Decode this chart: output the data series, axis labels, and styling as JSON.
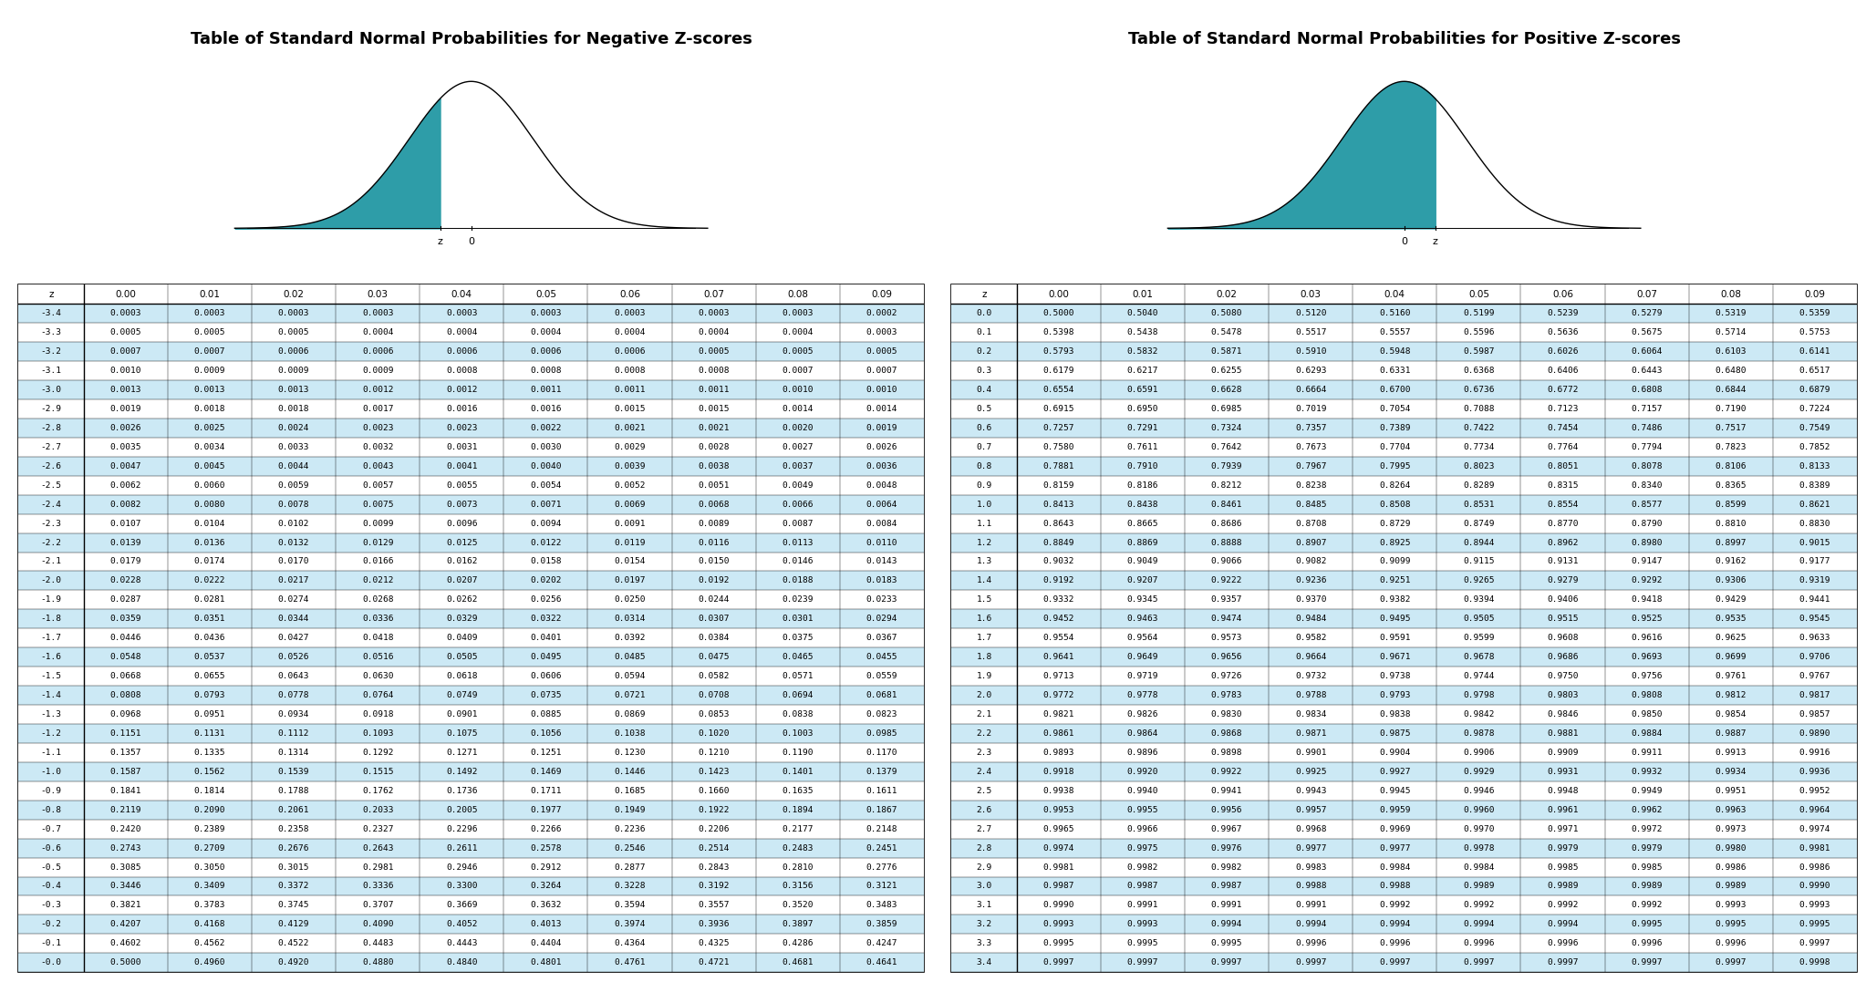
{
  "title_neg": "Table of Standard Normal Probabilities for Negative Z-scores",
  "title_pos": "Table of Standard Normal Probabilities for Positive Z-scores",
  "bg_color": "#ffffff",
  "row_alt_color": "#cce9f5",
  "row_normal_color": "#ffffff",
  "teal_fill": "#2e9da8",
  "col_headers": [
    "z",
    "0.00",
    "0.01",
    "0.02",
    "0.03",
    "0.04",
    "0.05",
    "0.06",
    "0.07",
    "0.08",
    "0.09"
  ],
  "neg_z_rows": [
    [
      -3.4,
      0.0003,
      0.0003,
      0.0003,
      0.0003,
      0.0003,
      0.0003,
      0.0003,
      0.0003,
      0.0003,
      0.0002
    ],
    [
      -3.3,
      0.0005,
      0.0005,
      0.0005,
      0.0004,
      0.0004,
      0.0004,
      0.0004,
      0.0004,
      0.0004,
      0.0003
    ],
    [
      -3.2,
      0.0007,
      0.0007,
      0.0006,
      0.0006,
      0.0006,
      0.0006,
      0.0006,
      0.0005,
      0.0005,
      0.0005
    ],
    [
      -3.1,
      0.001,
      0.0009,
      0.0009,
      0.0009,
      0.0008,
      0.0008,
      0.0008,
      0.0008,
      0.0007,
      0.0007
    ],
    [
      -3.0,
      0.0013,
      0.0013,
      0.0013,
      0.0012,
      0.0012,
      0.0011,
      0.0011,
      0.0011,
      0.001,
      0.001
    ],
    [
      -2.9,
      0.0019,
      0.0018,
      0.0018,
      0.0017,
      0.0016,
      0.0016,
      0.0015,
      0.0015,
      0.0014,
      0.0014
    ],
    [
      -2.8,
      0.0026,
      0.0025,
      0.0024,
      0.0023,
      0.0023,
      0.0022,
      0.0021,
      0.0021,
      0.002,
      0.0019
    ],
    [
      -2.7,
      0.0035,
      0.0034,
      0.0033,
      0.0032,
      0.0031,
      0.003,
      0.0029,
      0.0028,
      0.0027,
      0.0026
    ],
    [
      -2.6,
      0.0047,
      0.0045,
      0.0044,
      0.0043,
      0.0041,
      0.004,
      0.0039,
      0.0038,
      0.0037,
      0.0036
    ],
    [
      -2.5,
      0.0062,
      0.006,
      0.0059,
      0.0057,
      0.0055,
      0.0054,
      0.0052,
      0.0051,
      0.0049,
      0.0048
    ],
    [
      -2.4,
      0.0082,
      0.008,
      0.0078,
      0.0075,
      0.0073,
      0.0071,
      0.0069,
      0.0068,
      0.0066,
      0.0064
    ],
    [
      -2.3,
      0.0107,
      0.0104,
      0.0102,
      0.0099,
      0.0096,
      0.0094,
      0.0091,
      0.0089,
      0.0087,
      0.0084
    ],
    [
      -2.2,
      0.0139,
      0.0136,
      0.0132,
      0.0129,
      0.0125,
      0.0122,
      0.0119,
      0.0116,
      0.0113,
      0.011
    ],
    [
      -2.1,
      0.0179,
      0.0174,
      0.017,
      0.0166,
      0.0162,
      0.0158,
      0.0154,
      0.015,
      0.0146,
      0.0143
    ],
    [
      -2.0,
      0.0228,
      0.0222,
      0.0217,
      0.0212,
      0.0207,
      0.0202,
      0.0197,
      0.0192,
      0.0188,
      0.0183
    ],
    [
      -1.9,
      0.0287,
      0.0281,
      0.0274,
      0.0268,
      0.0262,
      0.0256,
      0.025,
      0.0244,
      0.0239,
      0.0233
    ],
    [
      -1.8,
      0.0359,
      0.0351,
      0.0344,
      0.0336,
      0.0329,
      0.0322,
      0.0314,
      0.0307,
      0.0301,
      0.0294
    ],
    [
      -1.7,
      0.0446,
      0.0436,
      0.0427,
      0.0418,
      0.0409,
      0.0401,
      0.0392,
      0.0384,
      0.0375,
      0.0367
    ],
    [
      -1.6,
      0.0548,
      0.0537,
      0.0526,
      0.0516,
      0.0505,
      0.0495,
      0.0485,
      0.0475,
      0.0465,
      0.0455
    ],
    [
      -1.5,
      0.0668,
      0.0655,
      0.0643,
      0.063,
      0.0618,
      0.0606,
      0.0594,
      0.0582,
      0.0571,
      0.0559
    ],
    [
      -1.4,
      0.0808,
      0.0793,
      0.0778,
      0.0764,
      0.0749,
      0.0735,
      0.0721,
      0.0708,
      0.0694,
      0.0681
    ],
    [
      -1.3,
      0.0968,
      0.0951,
      0.0934,
      0.0918,
      0.0901,
      0.0885,
      0.0869,
      0.0853,
      0.0838,
      0.0823
    ],
    [
      -1.2,
      0.1151,
      0.1131,
      0.1112,
      0.1093,
      0.1075,
      0.1056,
      0.1038,
      0.102,
      0.1003,
      0.0985
    ],
    [
      -1.1,
      0.1357,
      0.1335,
      0.1314,
      0.1292,
      0.1271,
      0.1251,
      0.123,
      0.121,
      0.119,
      0.117
    ],
    [
      -1.0,
      0.1587,
      0.1562,
      0.1539,
      0.1515,
      0.1492,
      0.1469,
      0.1446,
      0.1423,
      0.1401,
      0.1379
    ],
    [
      -0.9,
      0.1841,
      0.1814,
      0.1788,
      0.1762,
      0.1736,
      0.1711,
      0.1685,
      0.166,
      0.1635,
      0.1611
    ],
    [
      -0.8,
      0.2119,
      0.209,
      0.2061,
      0.2033,
      0.2005,
      0.1977,
      0.1949,
      0.1922,
      0.1894,
      0.1867
    ],
    [
      -0.7,
      0.242,
      0.2389,
      0.2358,
      0.2327,
      0.2296,
      0.2266,
      0.2236,
      0.2206,
      0.2177,
      0.2148
    ],
    [
      -0.6,
      0.2743,
      0.2709,
      0.2676,
      0.2643,
      0.2611,
      0.2578,
      0.2546,
      0.2514,
      0.2483,
      0.2451
    ],
    [
      -0.5,
      0.3085,
      0.305,
      0.3015,
      0.2981,
      0.2946,
      0.2912,
      0.2877,
      0.2843,
      0.281,
      0.2776
    ],
    [
      -0.4,
      0.3446,
      0.3409,
      0.3372,
      0.3336,
      0.33,
      0.3264,
      0.3228,
      0.3192,
      0.3156,
      0.3121
    ],
    [
      -0.3,
      0.3821,
      0.3783,
      0.3745,
      0.3707,
      0.3669,
      0.3632,
      0.3594,
      0.3557,
      0.352,
      0.3483
    ],
    [
      -0.2,
      0.4207,
      0.4168,
      0.4129,
      0.409,
      0.4052,
      0.4013,
      0.3974,
      0.3936,
      0.3897,
      0.3859
    ],
    [
      -0.1,
      0.4602,
      0.4562,
      0.4522,
      0.4483,
      0.4443,
      0.4404,
      0.4364,
      0.4325,
      0.4286,
      0.4247
    ],
    [
      -0.0,
      0.5,
      0.496,
      0.492,
      0.488,
      0.484,
      0.4801,
      0.4761,
      0.4721,
      0.4681,
      0.4641
    ]
  ],
  "pos_z_rows": [
    [
      0.0,
      0.5,
      0.504,
      0.508,
      0.512,
      0.516,
      0.5199,
      0.5239,
      0.5279,
      0.5319,
      0.5359
    ],
    [
      0.1,
      0.5398,
      0.5438,
      0.5478,
      0.5517,
      0.5557,
      0.5596,
      0.5636,
      0.5675,
      0.5714,
      0.5753
    ],
    [
      0.2,
      0.5793,
      0.5832,
      0.5871,
      0.591,
      0.5948,
      0.5987,
      0.6026,
      0.6064,
      0.6103,
      0.6141
    ],
    [
      0.3,
      0.6179,
      0.6217,
      0.6255,
      0.6293,
      0.6331,
      0.6368,
      0.6406,
      0.6443,
      0.648,
      0.6517
    ],
    [
      0.4,
      0.6554,
      0.6591,
      0.6628,
      0.6664,
      0.67,
      0.6736,
      0.6772,
      0.6808,
      0.6844,
      0.6879
    ],
    [
      0.5,
      0.6915,
      0.695,
      0.6985,
      0.7019,
      0.7054,
      0.7088,
      0.7123,
      0.7157,
      0.719,
      0.7224
    ],
    [
      0.6,
      0.7257,
      0.7291,
      0.7324,
      0.7357,
      0.7389,
      0.7422,
      0.7454,
      0.7486,
      0.7517,
      0.7549
    ],
    [
      0.7,
      0.758,
      0.7611,
      0.7642,
      0.7673,
      0.7704,
      0.7734,
      0.7764,
      0.7794,
      0.7823,
      0.7852
    ],
    [
      0.8,
      0.7881,
      0.791,
      0.7939,
      0.7967,
      0.7995,
      0.8023,
      0.8051,
      0.8078,
      0.8106,
      0.8133
    ],
    [
      0.9,
      0.8159,
      0.8186,
      0.8212,
      0.8238,
      0.8264,
      0.8289,
      0.8315,
      0.834,
      0.8365,
      0.8389
    ],
    [
      1.0,
      0.8413,
      0.8438,
      0.8461,
      0.8485,
      0.8508,
      0.8531,
      0.8554,
      0.8577,
      0.8599,
      0.8621
    ],
    [
      1.1,
      0.8643,
      0.8665,
      0.8686,
      0.8708,
      0.8729,
      0.8749,
      0.877,
      0.879,
      0.881,
      0.883
    ],
    [
      1.2,
      0.8849,
      0.8869,
      0.8888,
      0.8907,
      0.8925,
      0.8944,
      0.8962,
      0.898,
      0.8997,
      0.9015
    ],
    [
      1.3,
      0.9032,
      0.9049,
      0.9066,
      0.9082,
      0.9099,
      0.9115,
      0.9131,
      0.9147,
      0.9162,
      0.9177
    ],
    [
      1.4,
      0.9192,
      0.9207,
      0.9222,
      0.9236,
      0.9251,
      0.9265,
      0.9279,
      0.9292,
      0.9306,
      0.9319
    ],
    [
      1.5,
      0.9332,
      0.9345,
      0.9357,
      0.937,
      0.9382,
      0.9394,
      0.9406,
      0.9418,
      0.9429,
      0.9441
    ],
    [
      1.6,
      0.9452,
      0.9463,
      0.9474,
      0.9484,
      0.9495,
      0.9505,
      0.9515,
      0.9525,
      0.9535,
      0.9545
    ],
    [
      1.7,
      0.9554,
      0.9564,
      0.9573,
      0.9582,
      0.9591,
      0.9599,
      0.9608,
      0.9616,
      0.9625,
      0.9633
    ],
    [
      1.8,
      0.9641,
      0.9649,
      0.9656,
      0.9664,
      0.9671,
      0.9678,
      0.9686,
      0.9693,
      0.9699,
      0.9706
    ],
    [
      1.9,
      0.9713,
      0.9719,
      0.9726,
      0.9732,
      0.9738,
      0.9744,
      0.975,
      0.9756,
      0.9761,
      0.9767
    ],
    [
      2.0,
      0.9772,
      0.9778,
      0.9783,
      0.9788,
      0.9793,
      0.9798,
      0.9803,
      0.9808,
      0.9812,
      0.9817
    ],
    [
      2.1,
      0.9821,
      0.9826,
      0.983,
      0.9834,
      0.9838,
      0.9842,
      0.9846,
      0.985,
      0.9854,
      0.9857
    ],
    [
      2.2,
      0.9861,
      0.9864,
      0.9868,
      0.9871,
      0.9875,
      0.9878,
      0.9881,
      0.9884,
      0.9887,
      0.989
    ],
    [
      2.3,
      0.9893,
      0.9896,
      0.9898,
      0.9901,
      0.9904,
      0.9906,
      0.9909,
      0.9911,
      0.9913,
      0.9916
    ],
    [
      2.4,
      0.9918,
      0.992,
      0.9922,
      0.9925,
      0.9927,
      0.9929,
      0.9931,
      0.9932,
      0.9934,
      0.9936
    ],
    [
      2.5,
      0.9938,
      0.994,
      0.9941,
      0.9943,
      0.9945,
      0.9946,
      0.9948,
      0.9949,
      0.9951,
      0.9952
    ],
    [
      2.6,
      0.9953,
      0.9955,
      0.9956,
      0.9957,
      0.9959,
      0.996,
      0.9961,
      0.9962,
      0.9963,
      0.9964
    ],
    [
      2.7,
      0.9965,
      0.9966,
      0.9967,
      0.9968,
      0.9969,
      0.997,
      0.9971,
      0.9972,
      0.9973,
      0.9974
    ],
    [
      2.8,
      0.9974,
      0.9975,
      0.9976,
      0.9977,
      0.9977,
      0.9978,
      0.9979,
      0.9979,
      0.998,
      0.9981
    ],
    [
      2.9,
      0.9981,
      0.9982,
      0.9982,
      0.9983,
      0.9984,
      0.9984,
      0.9985,
      0.9985,
      0.9986,
      0.9986
    ],
    [
      3.0,
      0.9987,
      0.9987,
      0.9987,
      0.9988,
      0.9988,
      0.9989,
      0.9989,
      0.9989,
      0.9989,
      0.999
    ],
    [
      3.1,
      0.999,
      0.9991,
      0.9991,
      0.9991,
      0.9992,
      0.9992,
      0.9992,
      0.9992,
      0.9993,
      0.9993
    ],
    [
      3.2,
      0.9993,
      0.9993,
      0.9994,
      0.9994,
      0.9994,
      0.9994,
      0.9994,
      0.9995,
      0.9995,
      0.9995
    ],
    [
      3.3,
      0.9995,
      0.9995,
      0.9995,
      0.9996,
      0.9996,
      0.9996,
      0.9996,
      0.9996,
      0.9996,
      0.9997
    ],
    [
      3.4,
      0.9997,
      0.9997,
      0.9997,
      0.9997,
      0.9997,
      0.9997,
      0.9997,
      0.9997,
      0.9997,
      0.9998
    ]
  ]
}
